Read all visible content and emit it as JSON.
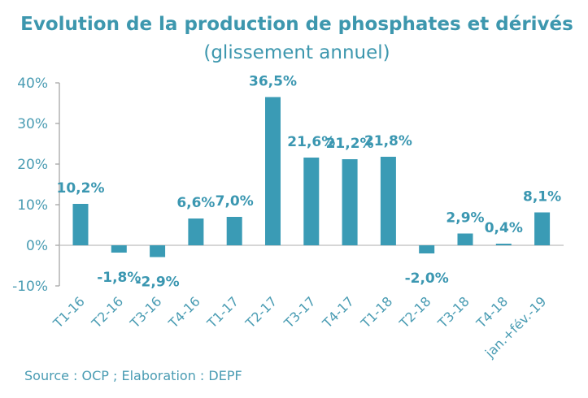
{
  "chart_data": {
    "type": "bar",
    "title": "Evolution de la production de phosphates et dérivés",
    "subtitle": "(glissement annuel)",
    "categories": [
      "T1-16",
      "T2-16",
      "T3-16",
      "T4-16",
      "T1-17",
      "T2-17",
      "T3-17",
      "T4-17",
      "T1-18",
      "T2-18",
      "T3-18",
      "T4-18",
      "jan.+fév.-19"
    ],
    "values": [
      10.2,
      -1.8,
      -2.9,
      6.6,
      7.0,
      36.5,
      21.6,
      21.2,
      21.8,
      -2.0,
      2.9,
      0.4,
      8.1
    ],
    "data_labels": [
      "10,2%",
      "-1,8%",
      "-2,9%",
      "6,6%",
      "7,0%",
      "36,5%",
      "21,6%",
      "21,2%",
      "21,8%",
      "-2,0%",
      "2,9%",
      "0,4%",
      "8,1%"
    ],
    "ylim": [
      -10,
      40
    ],
    "yticks": [
      -10,
      0,
      10,
      20,
      30,
      40
    ],
    "ytick_labels": [
      "-10%",
      "0%",
      "10%",
      "20%",
      "30%",
      "40%"
    ],
    "xlabel": "",
    "ylabel": "",
    "grid": false,
    "legend": "none",
    "bar_color": "#3a9bb5",
    "text_color": "#3d97ae",
    "source": "Source : OCP ; Elaboration : DEPF"
  }
}
